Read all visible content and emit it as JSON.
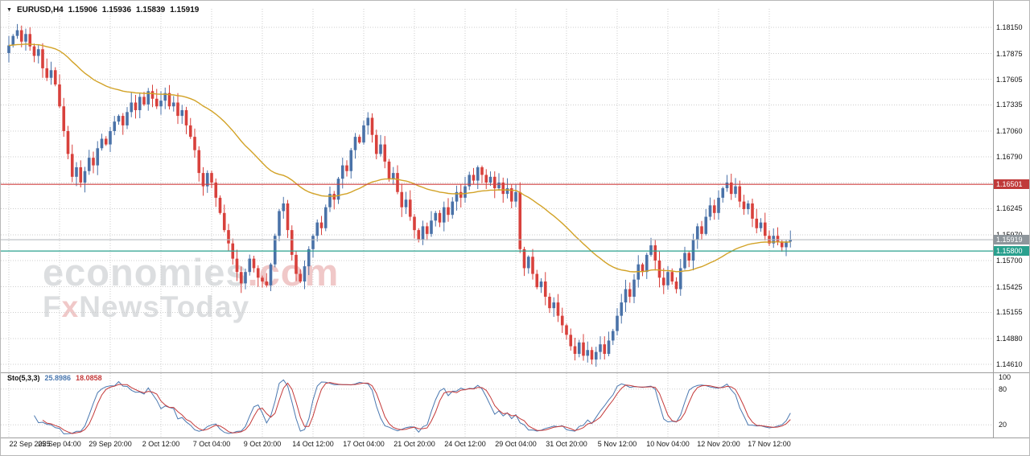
{
  "header": {
    "dropdown_icon": "▼",
    "symbol": "EURUSD,H4",
    "open": "1.15906",
    "high": "1.15936",
    "low": "1.15839",
    "close": "1.15919"
  },
  "watermark": {
    "brand": "economies",
    "suffix": ".com",
    "line2_f": "F",
    "line2_x": "x",
    "line2_rest": "NewsToday"
  },
  "colors": {
    "background": "#ffffff",
    "up_candle": "#4a72a8",
    "down_candle": "#d8413c",
    "grid": "#cdcdcd",
    "separator": "#9d9d9d",
    "axis_text": "#141414"
  },
  "stoch_panel": {
    "label": "Sto(5,3,3)",
    "main_value": "25.8986",
    "signal_value": "18.0858",
    "axis_labels": [
      {
        "text": "100",
        "value": 100
      },
      {
        "text": "80",
        "value": 80
      },
      {
        "text": "20",
        "value": 20
      }
    ]
  },
  "price_badges": [
    {
      "role": "resistance",
      "text": "1.16501",
      "value": 1.16501,
      "bg": "#c03a3a"
    },
    {
      "role": "current",
      "text": "1.15919",
      "value": 1.15919,
      "bg": "#8e969c"
    },
    {
      "role": "support",
      "text": "1.15800",
      "value": 1.158,
      "bg": "#2aa08e"
    }
  ],
  "chart_data": {
    "type": "candlestick",
    "symbol": "EURUSD",
    "timeframe": "H4",
    "title": "EURUSD,H4",
    "current_bar": {
      "open": 1.15906,
      "high": 1.15936,
      "low": 1.15839,
      "close": 1.15919
    },
    "y_axis": {
      "min": 1.1461,
      "max": 1.1815,
      "labels": [
        "1.18150",
        "1.17875",
        "1.17605",
        "1.17335",
        "1.17060",
        "1.16790",
        "1.16515",
        "1.16245",
        "1.15970",
        "1.15700",
        "1.15425",
        "1.15155",
        "1.14880",
        "1.14610"
      ]
    },
    "x_labels": [
      "22 Sep 2025",
      "25 Sep 04:00",
      "29 Sep 20:00",
      "2 Oct 12:00",
      "7 Oct 04:00",
      "9 Oct 20:00",
      "14 Oct 12:00",
      "17 Oct 04:00",
      "21 Oct 20:00",
      "24 Oct 12:00",
      "29 Oct 04:00",
      "31 Oct 20:00",
      "5 Nov 12:00",
      "10 Nov 04:00",
      "12 Nov 20:00",
      "17 Nov 12:00"
    ],
    "candles_per_label_gap": 12,
    "first_open": 1.1788,
    "closes": [
      1.1796,
      1.1806,
      1.1812,
      1.18,
      1.1808,
      1.1795,
      1.1785,
      1.1792,
      1.1772,
      1.1762,
      1.177,
      1.1755,
      1.1732,
      1.1706,
      1.1682,
      1.1658,
      1.1668,
      1.1652,
      1.1664,
      1.1678,
      1.167,
      1.1688,
      1.1698,
      1.1692,
      1.1706,
      1.1716,
      1.1722,
      1.1712,
      1.1726,
      1.1736,
      1.1728,
      1.1742,
      1.1734,
      1.1748,
      1.174,
      1.1732,
      1.1738,
      1.1746,
      1.1732,
      1.1736,
      1.1722,
      1.1728,
      1.1712,
      1.17,
      1.1686,
      1.1662,
      1.1648,
      1.1662,
      1.1652,
      1.1636,
      1.162,
      1.1602,
      1.1588,
      1.1572,
      1.1558,
      1.1546,
      1.1558,
      1.1572,
      1.1562,
      1.1552,
      1.1548,
      1.1544,
      1.1566,
      1.1596,
      1.1622,
      1.163,
      1.1602,
      1.1576,
      1.1556,
      1.1548,
      1.1564,
      1.1582,
      1.1596,
      1.161,
      1.1604,
      1.1626,
      1.164,
      1.1634,
      1.1656,
      1.167,
      1.1664,
      1.1686,
      1.17,
      1.1694,
      1.1712,
      1.172,
      1.1702,
      1.1682,
      1.1692,
      1.1674,
      1.1656,
      1.1662,
      1.1642,
      1.1626,
      1.1634,
      1.1616,
      1.1602,
      1.1592,
      1.1606,
      1.1598,
      1.1612,
      1.162,
      1.161,
      1.1626,
      1.1618,
      1.1632,
      1.1642,
      1.1636,
      1.1648,
      1.166,
      1.1654,
      1.1668,
      1.166,
      1.1652,
      1.1658,
      1.1646,
      1.1652,
      1.164,
      1.1646,
      1.1632,
      1.1642,
      1.1582,
      1.1562,
      1.1574,
      1.1556,
      1.1542,
      1.1548,
      1.1532,
      1.152,
      1.1526,
      1.1512,
      1.1502,
      1.1492,
      1.148,
      1.1472,
      1.1484,
      1.147,
      1.1476,
      1.1466,
      1.1474,
      1.1482,
      1.1472,
      1.1486,
      1.1496,
      1.1512,
      1.1526,
      1.154,
      1.1532,
      1.155,
      1.1566,
      1.1558,
      1.1576,
      1.1586,
      1.157,
      1.1552,
      1.1544,
      1.1558,
      1.1548,
      1.154,
      1.1562,
      1.1578,
      1.157,
      1.1592,
      1.1606,
      1.1598,
      1.1616,
      1.1628,
      1.162,
      1.1636,
      1.1646,
      1.1652,
      1.164,
      1.1648,
      1.1632,
      1.1624,
      1.163,
      1.1614,
      1.1604,
      1.161,
      1.1596,
      1.1588,
      1.1596,
      1.159,
      1.1584,
      1.159,
      1.15919
    ],
    "horizontal_levels": [
      {
        "name": "resistance",
        "value": 1.16501,
        "color": "#cf4040"
      },
      {
        "name": "support",
        "value": 1.158,
        "color": "#2aa08e"
      },
      {
        "name": "current_price",
        "value": 1.15919,
        "color": "#b9bec2"
      }
    ],
    "moving_average": {
      "method": "EMA",
      "period": 55,
      "color": "#d2a226"
    },
    "stochastic": {
      "k_period": 5,
      "slowing": 3,
      "d_period": 3,
      "main_color": "#4a78b0",
      "signal_color": "#c43939",
      "levels": [
        20,
        80
      ],
      "current_main": 25.8986,
      "current_signal": 18.0858
    }
  }
}
